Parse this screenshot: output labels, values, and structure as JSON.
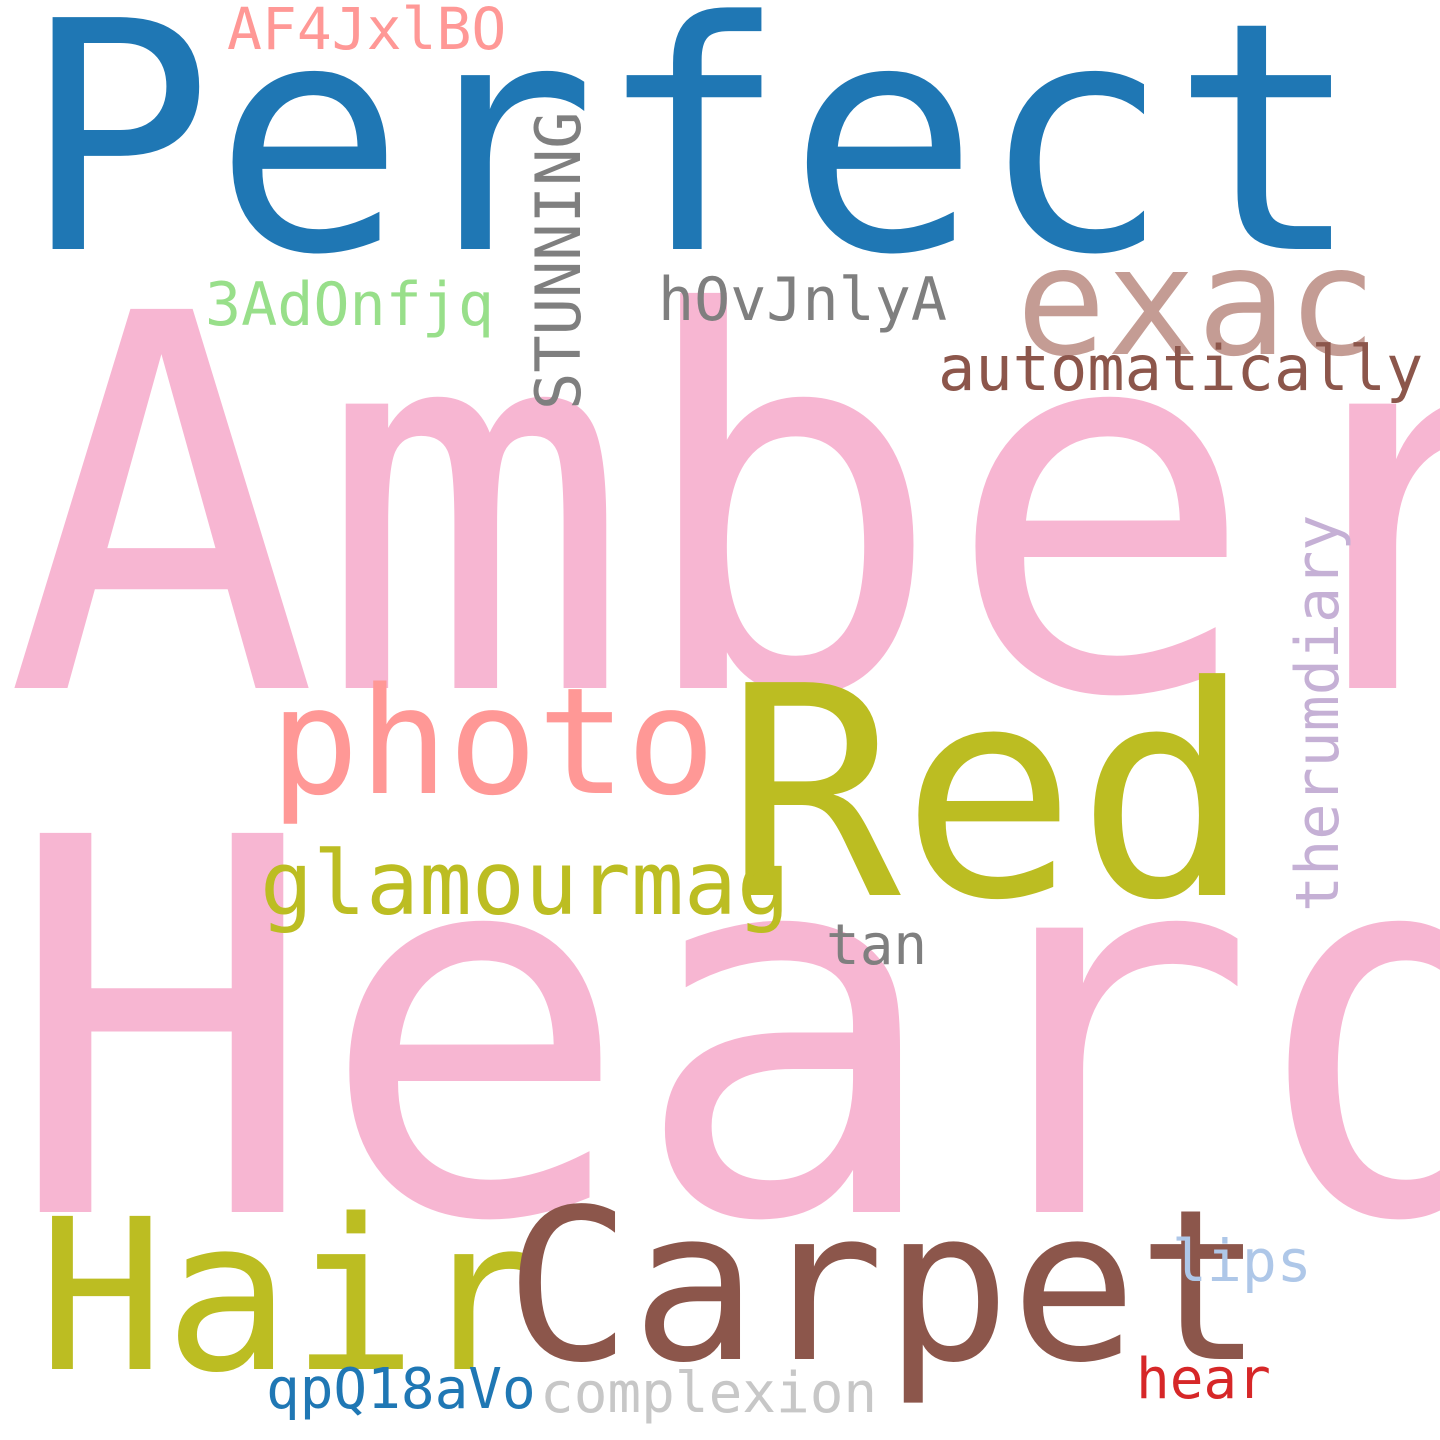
{
  "words": [
    {
      "text": "Perfect",
      "color": "#1f77b4"
    },
    {
      "text": "Amber",
      "color": "#f7b6d2"
    },
    {
      "text": "Heard",
      "color": "#f7b6d2"
    },
    {
      "text": "Red",
      "color": "#bcbd22"
    },
    {
      "text": "Hair",
      "color": "#bcbd22"
    },
    {
      "text": "Carpet",
      "color": "#8c564b"
    },
    {
      "text": "photo",
      "color": "#ff9896"
    },
    {
      "text": "exac",
      "color": "#c49c94"
    },
    {
      "text": "glamourmag",
      "color": "#bcbd22"
    },
    {
      "text": "automatically",
      "color": "#8c564b"
    },
    {
      "text": "STUNNING",
      "color": "#7f7f7f"
    },
    {
      "text": "hOvJnlyA",
      "color": "#7f7f7f"
    },
    {
      "text": "3AdOnfjq",
      "color": "#98df8a"
    },
    {
      "text": "AF4JxlBO",
      "color": "#ff9896"
    },
    {
      "text": "therumdiary",
      "color": "#c5b0d5"
    },
    {
      "text": "tan",
      "color": "#7f7f7f"
    },
    {
      "text": "lips",
      "color": "#aec7e8"
    },
    {
      "text": "qpQ18aVo",
      "color": "#1f77b4"
    },
    {
      "text": "complexion",
      "color": "#c7c7c7"
    },
    {
      "text": "hear",
      "color": "#d62728"
    }
  ]
}
